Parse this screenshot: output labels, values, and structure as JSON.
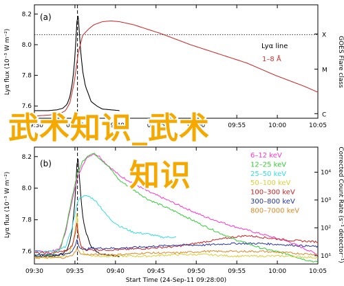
{
  "chart_data": [
    {
      "type": "line",
      "panel_label": "(a)",
      "ylabel": "Lyα flux (10⁻³ W m⁻²)",
      "right_label": "GOES Flare class",
      "xlabel": "",
      "yticks": [
        "7.6",
        "7.8",
        "8.0",
        "8.2"
      ],
      "ylim": [
        7.52,
        8.26
      ],
      "xlim": [
        0,
        100
      ],
      "xticks": [
        "09:30",
        "09:35",
        "09:40",
        "09:45",
        "09:50",
        "09:55",
        "10:00",
        "10:05"
      ],
      "x_positions": [
        0,
        14.3,
        28.6,
        42.9,
        57.1,
        71.4,
        85.7,
        100
      ],
      "flare_classes": [
        "X",
        "M",
        "C"
      ],
      "flare_levels": [
        8.07,
        7.84,
        7.55
      ],
      "threshold_y": 8.065,
      "peak_x": 15.2,
      "series": [
        {
          "name": "Lyα line",
          "color": "#000000",
          "x": [
            0,
            5,
            8,
            10,
            11.5,
            12.5,
            13.5,
            14.2,
            14.8,
            15.2,
            15.6,
            16.2,
            17,
            18,
            19,
            20,
            22,
            24,
            27,
            30
          ],
          "y": [
            7.57,
            7.57,
            7.575,
            7.585,
            7.61,
            7.66,
            7.76,
            7.9,
            8.08,
            8.22,
            8.16,
            7.98,
            7.83,
            7.73,
            7.68,
            7.63,
            7.6,
            7.58,
            7.575,
            7.57
          ]
        },
        {
          "name": "1–8 Å",
          "color": "#cc3333",
          "x": [
            0,
            5,
            9,
            11,
            12.5,
            14,
            15.5,
            17,
            19,
            21,
            24,
            27,
            30,
            35,
            45,
            55,
            65,
            75,
            85,
            95,
            100
          ],
          "y": [
            7.535,
            7.54,
            7.55,
            7.57,
            7.62,
            7.75,
            7.95,
            8.06,
            8.1,
            8.13,
            8.15,
            8.155,
            8.15,
            8.13,
            8.07,
            8.0,
            7.94,
            7.88,
            7.8,
            7.73,
            7.69
          ]
        }
      ]
    },
    {
      "type": "line",
      "panel_label": "(b)",
      "ylabel": "Lyα flux (10⁻³ W m⁻²)",
      "right_label": "Corrected Count Rate (s⁻¹ detector⁻¹)",
      "xlabel": "Start Time (24-Sep-11 09:28:00)",
      "yticks": [
        "7.6",
        "7.8",
        "8.0",
        "8.2"
      ],
      "ylim": [
        7.52,
        8.26
      ],
      "xlim": [
        0,
        100
      ],
      "xticks": [
        "09:30",
        "09:35",
        "09:40",
        "09:45",
        "09:50",
        "09:55",
        "10:00",
        "10:05"
      ],
      "x_positions": [
        0,
        14.3,
        28.6,
        42.9,
        57.1,
        71.4,
        85.7,
        100
      ],
      "right_ticks": [
        "10¹",
        "10²",
        "10³",
        "10⁴"
      ],
      "peak_x": 15.2,
      "series": [
        {
          "name": "Lyα line",
          "color": "#000000",
          "x": [
            0,
            5,
            8,
            10,
            11.5,
            12.5,
            13.5,
            14.2,
            14.8,
            15.2,
            15.6,
            16.2,
            17,
            18,
            19,
            20,
            22,
            24,
            27,
            30
          ],
          "y": [
            7.57,
            7.57,
            7.575,
            7.585,
            7.61,
            7.66,
            7.76,
            7.9,
            8.08,
            8.22,
            8.16,
            7.98,
            7.83,
            7.73,
            7.68,
            7.63,
            7.6,
            7.58,
            7.575,
            7.57
          ]
        },
        {
          "name": "6–12 keV",
          "color": "#ff33cc",
          "x": [
            0,
            6,
            9,
            11,
            13,
            15,
            17,
            19,
            21,
            23,
            25,
            30,
            40,
            50,
            60,
            70,
            80,
            90,
            95,
            100
          ],
          "y": [
            7.6,
            7.6,
            7.62,
            7.72,
            7.9,
            8.05,
            8.15,
            8.2,
            8.22,
            8.2,
            8.16,
            8.08,
            7.98,
            7.9,
            7.82,
            7.76,
            7.71,
            7.66,
            7.62,
            7.58
          ]
        },
        {
          "name": "12–25 keV",
          "color": "#33cc33",
          "x": [
            0,
            6,
            9,
            11,
            13,
            15,
            17,
            19,
            21,
            23,
            26,
            30,
            40,
            50,
            60,
            70,
            80,
            90,
            95,
            100
          ],
          "y": [
            7.58,
            7.58,
            7.61,
            7.73,
            7.92,
            8.08,
            8.17,
            8.21,
            8.22,
            8.19,
            8.14,
            8.05,
            7.93,
            7.85,
            7.76,
            7.68,
            7.62,
            7.58,
            7.55,
            7.53
          ]
        },
        {
          "name": "25–50 keV",
          "color": "#33dddd",
          "x": [
            0,
            8,
            11,
            13,
            14.5,
            15.5,
            17,
            19,
            21,
            23,
            25,
            27,
            30,
            35,
            40,
            45,
            50
          ],
          "y": [
            7.6,
            7.6,
            7.63,
            7.73,
            7.85,
            7.93,
            7.95,
            7.95,
            7.93,
            7.89,
            7.84,
            7.8,
            7.76,
            7.72,
            7.71,
            7.69,
            7.69
          ]
        },
        {
          "name": "50–100 keV",
          "color": "#ddcc33",
          "x": [
            0,
            6,
            10,
            12,
            13.5,
            14.5,
            15,
            15.5,
            16.5,
            18,
            22,
            30,
            40,
            50,
            60,
            70,
            80,
            90,
            100
          ],
          "y": [
            7.56,
            7.56,
            7.57,
            7.58,
            7.64,
            7.76,
            7.84,
            7.72,
            7.62,
            7.58,
            7.57,
            7.57,
            7.57,
            7.58,
            7.58,
            7.57,
            7.57,
            7.57,
            7.56
          ]
        },
        {
          "name": "100–300 keV",
          "color": "#cc2222",
          "x": [
            0,
            6,
            10,
            12,
            13.5,
            14.5,
            15,
            15.5,
            16.5,
            18,
            22,
            30,
            40,
            50,
            60,
            70,
            75,
            80,
            90,
            100
          ],
          "y": [
            7.59,
            7.59,
            7.6,
            7.61,
            7.64,
            7.72,
            7.78,
            7.7,
            7.63,
            7.61,
            7.61,
            7.61,
            7.62,
            7.63,
            7.66,
            7.69,
            7.7,
            7.69,
            7.67,
            7.66
          ]
        },
        {
          "name": "300–800 keV",
          "color": "#2233aa",
          "x": [
            0,
            10,
            13,
            14.5,
            15,
            15.5,
            17,
            20,
            30,
            40,
            50,
            60,
            70,
            80,
            90,
            100
          ],
          "y": [
            7.58,
            7.58,
            7.59,
            7.64,
            7.68,
            7.64,
            7.61,
            7.62,
            7.62,
            7.63,
            7.64,
            7.64,
            7.65,
            7.65,
            7.64,
            7.63
          ]
        },
        {
          "name": "800–7000 keV",
          "color": "#dd8822",
          "x": [
            0,
            10,
            13,
            14.5,
            15,
            15.5,
            17,
            20,
            30,
            40,
            50,
            60,
            70,
            80,
            90,
            100
          ],
          "y": [
            7.56,
            7.56,
            7.57,
            7.6,
            7.62,
            7.6,
            7.58,
            7.58,
            7.58,
            7.59,
            7.59,
            7.6,
            7.6,
            7.6,
            7.59,
            7.58
          ]
        }
      ]
    }
  ],
  "watermark": {
    "line1": "武术知识_武术",
    "line2": "知识"
  }
}
